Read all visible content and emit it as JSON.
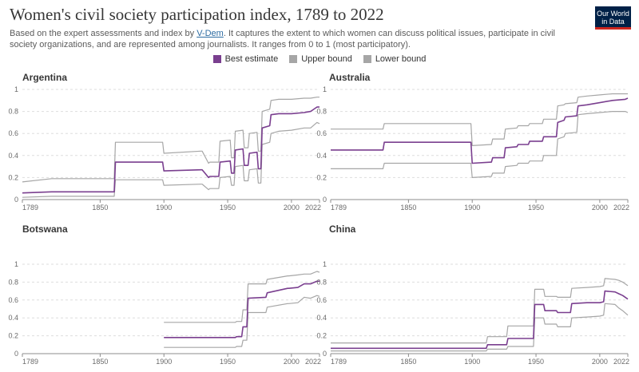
{
  "header": {
    "title": "Women's civil society participation index, 1789 to 2022",
    "subtitle_before_link": "Based on the expert assessments and index by ",
    "subtitle_link": "V-Dem",
    "subtitle_after_link": ". It captures the extent to which women can discuss political issues, participate in civil society organizations, and are represented among journalists. It ranges from 0 to 1 (most participatory).",
    "logo_line1": "Our World",
    "logo_line2": "in Data"
  },
  "legend": [
    {
      "label": "Best estimate",
      "color": "#7a3f8f"
    },
    {
      "label": "Upper bound",
      "color": "#a6a6a6"
    },
    {
      "label": "Lower bound",
      "color": "#a6a6a6"
    }
  ],
  "chart_data": [
    {
      "type": "line",
      "title": "Argentina",
      "xlim": [
        1789,
        2022
      ],
      "ylim": [
        0,
        1
      ],
      "x_ticks": [
        "1789",
        "1850",
        "1900",
        "1950",
        "2000",
        "2022"
      ],
      "y_ticks": [
        "0",
        "0.2",
        "0.4",
        "0.6",
        "0.8",
        "1"
      ],
      "series": [
        {
          "name": "Best estimate",
          "color": "#7a3f8f",
          "x": [
            1789,
            1812,
            1861,
            1862,
            1899,
            1900,
            1929,
            1930,
            1935,
            1936,
            1943,
            1944,
            1952,
            1953,
            1955,
            1956,
            1962,
            1963,
            1966,
            1967,
            1973,
            1974,
            1976,
            1977,
            1983,
            1984,
            1990,
            2000,
            2010,
            2015,
            2020,
            2022
          ],
          "y": [
            0.06,
            0.07,
            0.07,
            0.34,
            0.34,
            0.26,
            0.27,
            0.27,
            0.2,
            0.21,
            0.21,
            0.34,
            0.35,
            0.24,
            0.24,
            0.45,
            0.46,
            0.31,
            0.31,
            0.42,
            0.43,
            0.28,
            0.28,
            0.65,
            0.67,
            0.77,
            0.78,
            0.78,
            0.79,
            0.8,
            0.84,
            0.84
          ]
        },
        {
          "name": "Upper bound",
          "color": "#a6a6a6",
          "x": [
            1789,
            1812,
            1861,
            1862,
            1899,
            1900,
            1929,
            1930,
            1935,
            1936,
            1943,
            1944,
            1952,
            1953,
            1955,
            1956,
            1962,
            1963,
            1966,
            1967,
            1973,
            1974,
            1976,
            1977,
            1983,
            1984,
            1990,
            2000,
            2010,
            2015,
            2020,
            2022
          ],
          "y": [
            0.16,
            0.19,
            0.19,
            0.52,
            0.52,
            0.42,
            0.44,
            0.44,
            0.33,
            0.34,
            0.34,
            0.53,
            0.54,
            0.38,
            0.38,
            0.62,
            0.63,
            0.47,
            0.47,
            0.6,
            0.61,
            0.44,
            0.44,
            0.8,
            0.82,
            0.9,
            0.91,
            0.91,
            0.92,
            0.92,
            0.93,
            0.93
          ]
        },
        {
          "name": "Lower bound",
          "color": "#a6a6a6",
          "x": [
            1789,
            1812,
            1861,
            1862,
            1899,
            1900,
            1929,
            1930,
            1935,
            1936,
            1943,
            1944,
            1952,
            1953,
            1955,
            1956,
            1962,
            1963,
            1966,
            1967,
            1973,
            1974,
            1976,
            1977,
            1983,
            1984,
            1990,
            2000,
            2010,
            2015,
            2020,
            2022
          ],
          "y": [
            0.02,
            0.03,
            0.03,
            0.18,
            0.18,
            0.13,
            0.14,
            0.14,
            0.09,
            0.1,
            0.1,
            0.2,
            0.21,
            0.13,
            0.13,
            0.3,
            0.31,
            0.17,
            0.17,
            0.27,
            0.28,
            0.15,
            0.15,
            0.5,
            0.52,
            0.6,
            0.62,
            0.63,
            0.65,
            0.65,
            0.7,
            0.69
          ]
        }
      ]
    },
    {
      "type": "line",
      "title": "Australia",
      "xlim": [
        1789,
        2022
      ],
      "ylim": [
        0,
        1
      ],
      "x_ticks": [
        "1789",
        "1850",
        "1900",
        "1950",
        "2000",
        "2022"
      ],
      "y_ticks": [
        "0",
        "0.2",
        "0.4",
        "0.6",
        "0.8",
        "1"
      ],
      "series": [
        {
          "name": "Best estimate",
          "color": "#7a3f8f",
          "x": [
            1789,
            1830,
            1831,
            1899,
            1900,
            1915,
            1916,
            1925,
            1926,
            1935,
            1936,
            1944,
            1945,
            1955,
            1956,
            1966,
            1967,
            1972,
            1973,
            1982,
            1983,
            1990,
            2000,
            2010,
            2020,
            2022
          ],
          "y": [
            0.45,
            0.45,
            0.52,
            0.52,
            0.33,
            0.34,
            0.38,
            0.38,
            0.47,
            0.48,
            0.5,
            0.5,
            0.53,
            0.53,
            0.57,
            0.57,
            0.7,
            0.72,
            0.75,
            0.76,
            0.85,
            0.86,
            0.88,
            0.9,
            0.91,
            0.92
          ]
        },
        {
          "name": "Upper bound",
          "color": "#a6a6a6",
          "x": [
            1789,
            1830,
            1831,
            1899,
            1900,
            1915,
            1916,
            1925,
            1926,
            1935,
            1936,
            1944,
            1945,
            1955,
            1956,
            1966,
            1967,
            1972,
            1973,
            1982,
            1983,
            1990,
            2000,
            2010,
            2020,
            2022
          ],
          "y": [
            0.64,
            0.64,
            0.69,
            0.69,
            0.49,
            0.5,
            0.55,
            0.55,
            0.64,
            0.65,
            0.67,
            0.67,
            0.69,
            0.69,
            0.73,
            0.73,
            0.85,
            0.86,
            0.87,
            0.88,
            0.93,
            0.94,
            0.95,
            0.96,
            0.96,
            0.96
          ]
        },
        {
          "name": "Lower bound",
          "color": "#a6a6a6",
          "x": [
            1789,
            1830,
            1831,
            1899,
            1900,
            1915,
            1916,
            1925,
            1926,
            1935,
            1936,
            1944,
            1945,
            1955,
            1956,
            1966,
            1967,
            1972,
            1973,
            1982,
            1983,
            1990,
            2000,
            2010,
            2020,
            2022
          ],
          "y": [
            0.28,
            0.28,
            0.33,
            0.33,
            0.2,
            0.21,
            0.24,
            0.24,
            0.3,
            0.31,
            0.33,
            0.33,
            0.35,
            0.35,
            0.4,
            0.4,
            0.55,
            0.57,
            0.6,
            0.61,
            0.77,
            0.78,
            0.79,
            0.8,
            0.8,
            0.79
          ]
        }
      ]
    },
    {
      "type": "line",
      "title": "Botswana",
      "xlim": [
        1789,
        2022
      ],
      "ylim": [
        0,
        1
      ],
      "x_ticks": [
        "1789",
        "1850",
        "1900",
        "1950",
        "2000",
        "2022"
      ],
      "y_ticks": [
        "0",
        "0.2",
        "0.4",
        "0.6",
        "0.8",
        "1"
      ],
      "series": [
        {
          "name": "Best estimate",
          "color": "#7a3f8f",
          "x": [
            1900,
            1956,
            1957,
            1961,
            1962,
            1965,
            1966,
            1980,
            1981,
            1997,
            1998,
            2005,
            2010,
            2015,
            2020,
            2022
          ],
          "y": [
            0.18,
            0.18,
            0.19,
            0.19,
            0.3,
            0.3,
            0.62,
            0.63,
            0.68,
            0.73,
            0.73,
            0.74,
            0.78,
            0.78,
            0.81,
            0.81
          ]
        },
        {
          "name": "Upper bound",
          "color": "#a6a6a6",
          "x": [
            1900,
            1956,
            1957,
            1961,
            1962,
            1965,
            1966,
            1980,
            1981,
            1997,
            1998,
            2005,
            2010,
            2015,
            2020,
            2022
          ],
          "y": [
            0.35,
            0.35,
            0.36,
            0.36,
            0.49,
            0.49,
            0.78,
            0.78,
            0.83,
            0.87,
            0.87,
            0.88,
            0.89,
            0.89,
            0.92,
            0.91
          ]
        },
        {
          "name": "Lower bound",
          "color": "#a6a6a6",
          "x": [
            1900,
            1956,
            1957,
            1961,
            1962,
            1965,
            1966,
            1980,
            1981,
            1997,
            1998,
            2005,
            2010,
            2015,
            2020,
            2022
          ],
          "y": [
            0.07,
            0.07,
            0.08,
            0.08,
            0.15,
            0.15,
            0.46,
            0.46,
            0.52,
            0.56,
            0.56,
            0.57,
            0.63,
            0.62,
            0.65,
            0.64
          ]
        }
      ]
    },
    {
      "type": "line",
      "title": "China",
      "xlim": [
        1789,
        2022
      ],
      "ylim": [
        0,
        1
      ],
      "x_ticks": [
        "1789",
        "1850",
        "1900",
        "1950",
        "2000",
        "2022"
      ],
      "y_ticks": [
        "0",
        "0.2",
        "0.4",
        "0.6",
        "0.8",
        "1"
      ],
      "series": [
        {
          "name": "Best estimate",
          "color": "#7a3f8f",
          "x": [
            1789,
            1911,
            1912,
            1927,
            1928,
            1948,
            1949,
            1956,
            1957,
            1966,
            1967,
            1977,
            1978,
            1990,
            2000,
            2003,
            2004,
            2012,
            2015,
            2018,
            2022
          ],
          "y": [
            0.06,
            0.06,
            0.1,
            0.1,
            0.17,
            0.17,
            0.55,
            0.55,
            0.48,
            0.48,
            0.46,
            0.46,
            0.56,
            0.57,
            0.57,
            0.58,
            0.7,
            0.69,
            0.67,
            0.65,
            0.61
          ]
        },
        {
          "name": "Upper bound",
          "color": "#a6a6a6",
          "x": [
            1789,
            1911,
            1912,
            1927,
            1928,
            1948,
            1949,
            1956,
            1957,
            1966,
            1967,
            1977,
            1978,
            1990,
            2000,
            2003,
            2004,
            2012,
            2015,
            2018,
            2022
          ],
          "y": [
            0.12,
            0.12,
            0.19,
            0.19,
            0.31,
            0.31,
            0.72,
            0.72,
            0.64,
            0.64,
            0.63,
            0.63,
            0.73,
            0.74,
            0.75,
            0.76,
            0.84,
            0.83,
            0.82,
            0.8,
            0.76
          ]
        },
        {
          "name": "Lower bound",
          "color": "#a6a6a6",
          "x": [
            1789,
            1911,
            1912,
            1927,
            1928,
            1948,
            1949,
            1956,
            1957,
            1966,
            1967,
            1977,
            1978,
            1990,
            2000,
            2003,
            2004,
            2012,
            2015,
            2018,
            2022
          ],
          "y": [
            0.03,
            0.03,
            0.05,
            0.05,
            0.08,
            0.08,
            0.4,
            0.4,
            0.33,
            0.33,
            0.3,
            0.3,
            0.4,
            0.41,
            0.42,
            0.43,
            0.56,
            0.55,
            0.51,
            0.48,
            0.43
          ]
        }
      ]
    }
  ]
}
